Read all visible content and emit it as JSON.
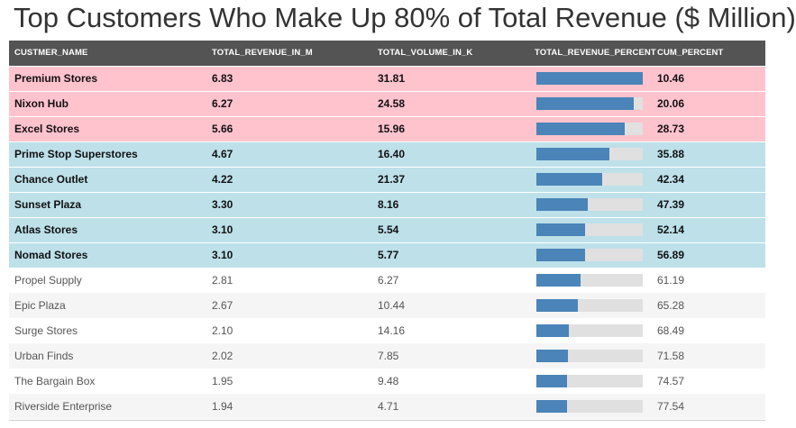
{
  "title": "Top Customers Who Make Up 80% of Total Revenue ($ Million)",
  "columns": [
    "CUSTMER_NAME",
    "TOTAL_REVENUE_IN_M",
    "TOTAL_VOLUME_IN_K",
    "TOTAL_REVENUE_PERCENT",
    "CUM_PERCENT"
  ],
  "colors": {
    "header_bg": "#545454",
    "top_tier_bg": "#ffc3ce",
    "mid_tier_bg": "#bde0e9",
    "bar_fill": "#4a84b8",
    "bar_track": "#e0e0e0"
  },
  "rows": [
    {
      "name": "Premium Stores",
      "revenue": "6.83",
      "volume": "31.81",
      "revenue_percent": 10.46,
      "cum_percent": "10.46",
      "tier": "top"
    },
    {
      "name": "Nixon Hub",
      "revenue": "6.27",
      "volume": "24.58",
      "revenue_percent": 9.6,
      "cum_percent": "20.06",
      "tier": "top"
    },
    {
      "name": "Excel Stores",
      "revenue": "5.66",
      "volume": "15.96",
      "revenue_percent": 8.67,
      "cum_percent": "28.73",
      "tier": "top"
    },
    {
      "name": "Prime Stop Superstores",
      "revenue": "4.67",
      "volume": "16.40",
      "revenue_percent": 7.15,
      "cum_percent": "35.88",
      "tier": "mid"
    },
    {
      "name": "Chance Outlet",
      "revenue": "4.22",
      "volume": "21.37",
      "revenue_percent": 6.46,
      "cum_percent": "42.34",
      "tier": "mid"
    },
    {
      "name": "Sunset Plaza",
      "revenue": "3.30",
      "volume": "8.16",
      "revenue_percent": 5.05,
      "cum_percent": "47.39",
      "tier": "mid"
    },
    {
      "name": "Atlas Stores",
      "revenue": "3.10",
      "volume": "5.54",
      "revenue_percent": 4.75,
      "cum_percent": "52.14",
      "tier": "mid"
    },
    {
      "name": "Nomad Stores",
      "revenue": "3.10",
      "volume": "5.77",
      "revenue_percent": 4.75,
      "cum_percent": "56.89",
      "tier": "mid"
    },
    {
      "name": "Propel Supply",
      "revenue": "2.81",
      "volume": "6.27",
      "revenue_percent": 4.3,
      "cum_percent": "61.19",
      "tier": "rest"
    },
    {
      "name": "Epic Plaza",
      "revenue": "2.67",
      "volume": "10.44",
      "revenue_percent": 4.09,
      "cum_percent": "65.28",
      "tier": "rest"
    },
    {
      "name": "Surge Stores",
      "revenue": "2.10",
      "volume": "14.16",
      "revenue_percent": 3.21,
      "cum_percent": "68.49",
      "tier": "rest"
    },
    {
      "name": "Urban Finds",
      "revenue": "2.02",
      "volume": "7.85",
      "revenue_percent": 3.09,
      "cum_percent": "71.58",
      "tier": "rest"
    },
    {
      "name": "The Bargain Box",
      "revenue": "1.95",
      "volume": "9.48",
      "revenue_percent": 2.99,
      "cum_percent": "74.57",
      "tier": "rest"
    },
    {
      "name": "Riverside Enterprise",
      "revenue": "1.94",
      "volume": "4.71",
      "revenue_percent": 2.97,
      "cum_percent": "77.54",
      "tier": "rest"
    }
  ]
}
